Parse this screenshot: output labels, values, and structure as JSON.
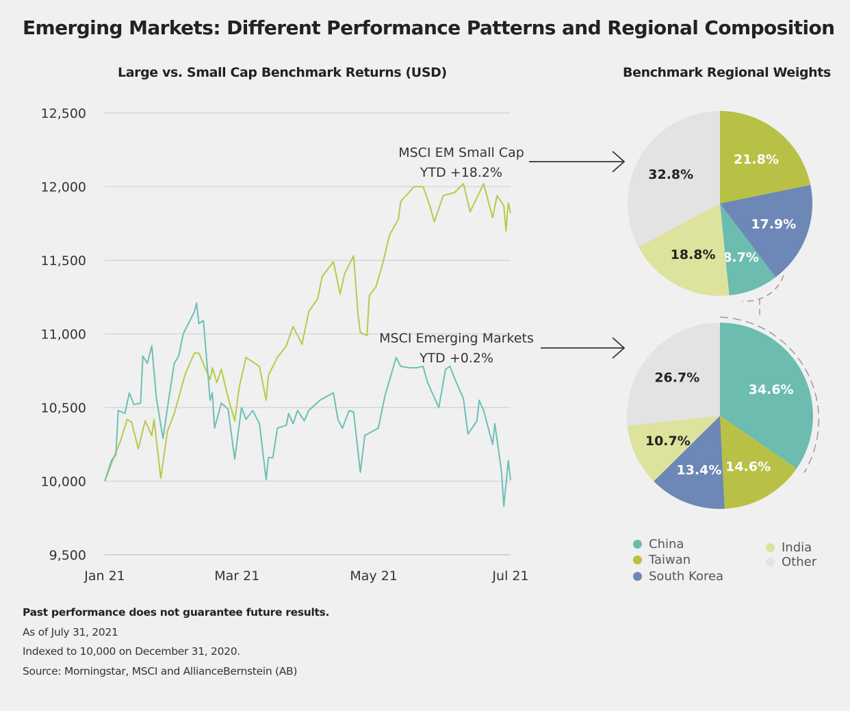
{
  "title": "Emerging Markets: Different Performance Patterns and Regional Composition",
  "footer": {
    "disclaimer": "Past performance does not guarantee future results.",
    "as_of": "As of July 31, 2021",
    "indexed": "Indexed to 10,000 on December 31, 2020.",
    "source": "Source: Morningstar, MSCI and AllianceBernstein (AB)"
  },
  "colors": {
    "china": "#6cbcb0",
    "taiwan": "#b8c145",
    "south_korea": "#6d87b6",
    "india": "#dde29d",
    "other": "#e3e3e3"
  },
  "chart_data": [
    {
      "type": "line",
      "title": "Large vs. Small Cap Benchmark Returns (USD)",
      "xlabel": "",
      "ylabel": "",
      "ylim": [
        9500,
        12500
      ],
      "yticks": [
        9500,
        10000,
        10500,
        11000,
        11500,
        12000,
        12500
      ],
      "ytick_labels": [
        "9,500",
        "10,000",
        "10,500",
        "11,000",
        "11,500",
        "12,000",
        "12,500"
      ],
      "xlim": [
        "2021-01-01",
        "2021-07-01"
      ],
      "xticks": [
        "2021-01-01",
        "2021-03-01",
        "2021-05-01",
        "2021-07-01"
      ],
      "xtick_labels": [
        "Jan 21",
        "Mar 21",
        "May 21",
        "Jul 21"
      ],
      "grid": "horizontal",
      "series": [
        {
          "name": "MSCI EM Small Cap",
          "annotation": [
            "MSCI EM Small Cap",
            "YTD +18.2%"
          ],
          "color": "#b9c84a",
          "x": [
            "2021-01-01",
            "2021-01-05",
            "2021-01-08",
            "2021-01-11",
            "2021-01-13",
            "2021-01-16",
            "2021-01-19",
            "2021-01-22",
            "2021-01-23",
            "2021-01-26",
            "2021-01-29",
            "2021-02-01",
            "2021-02-06",
            "2021-02-10",
            "2021-02-12",
            "2021-02-17",
            "2021-02-18",
            "2021-02-20",
            "2021-02-22",
            "2021-02-25",
            "2021-02-28",
            "2021-03-02",
            "2021-03-05",
            "2021-03-11",
            "2021-03-14",
            "2021-03-15",
            "2021-03-19",
            "2021-03-23",
            "2021-03-26",
            "2021-03-30",
            "2021-04-02",
            "2021-04-06",
            "2021-04-08",
            "2021-04-13",
            "2021-04-16",
            "2021-04-18",
            "2021-04-22",
            "2021-04-24",
            "2021-04-25",
            "2021-04-28",
            "2021-04-29",
            "2021-05-02",
            "2021-05-05",
            "2021-05-08",
            "2021-05-12",
            "2021-05-13",
            "2021-05-19",
            "2021-05-23",
            "2021-05-26",
            "2021-05-28",
            "2021-06-01",
            "2021-06-06",
            "2021-06-10",
            "2021-06-13",
            "2021-06-19",
            "2021-06-23",
            "2021-06-25",
            "2021-06-28",
            "2021-06-29",
            "2021-06-30",
            "2021-07-01"
          ],
          "y": [
            10000,
            10160,
            10270,
            10420,
            10400,
            10220,
            10410,
            10310,
            10420,
            10020,
            10340,
            10460,
            10730,
            10870,
            10870,
            10690,
            10770,
            10670,
            10760,
            10570,
            10410,
            10640,
            10840,
            10780,
            10550,
            10720,
            10840,
            10920,
            11050,
            10930,
            11150,
            11240,
            11390,
            11490,
            11270,
            11410,
            11530,
            11130,
            11010,
            10990,
            11260,
            11320,
            11480,
            11670,
            11780,
            11900,
            12000,
            12000,
            11870,
            11760,
            11940,
            11960,
            12020,
            11830,
            12020,
            11790,
            11940,
            11870,
            11700,
            11890,
            11820
          ]
        },
        {
          "name": "MSCI Emerging Markets",
          "annotation": [
            "MSCI Emerging Markets",
            "YTD +0.2%"
          ],
          "color": "#6bbfb4",
          "x": [
            "2021-01-01",
            "2021-01-04",
            "2021-01-06",
            "2021-01-07",
            "2021-01-10",
            "2021-01-12",
            "2021-01-14",
            "2021-01-17",
            "2021-01-18",
            "2021-01-20",
            "2021-01-22",
            "2021-01-24",
            "2021-01-27",
            "2021-01-29",
            "2021-02-01",
            "2021-02-03",
            "2021-02-05",
            "2021-02-10",
            "2021-02-11",
            "2021-02-12",
            "2021-02-14",
            "2021-02-17",
            "2021-02-18",
            "2021-02-19",
            "2021-02-22",
            "2021-02-25",
            "2021-02-28",
            "2021-03-03",
            "2021-03-05",
            "2021-03-08",
            "2021-03-11",
            "2021-03-14",
            "2021-03-15",
            "2021-03-17",
            "2021-03-19",
            "2021-03-23",
            "2021-03-24",
            "2021-03-26",
            "2021-03-28",
            "2021-03-31",
            "2021-04-02",
            "2021-04-07",
            "2021-04-13",
            "2021-04-15",
            "2021-04-17",
            "2021-04-20",
            "2021-04-22",
            "2021-04-25",
            "2021-04-27",
            "2021-05-03",
            "2021-05-06",
            "2021-05-11",
            "2021-05-13",
            "2021-05-17",
            "2021-05-20",
            "2021-05-23",
            "2021-05-25",
            "2021-05-30",
            "2021-06-02",
            "2021-06-04",
            "2021-06-06",
            "2021-06-10",
            "2021-06-12",
            "2021-06-16",
            "2021-06-17",
            "2021-06-19",
            "2021-06-23",
            "2021-06-24",
            "2021-06-27",
            "2021-06-28",
            "2021-06-30",
            "2021-07-01"
          ],
          "y": [
            10000,
            10140,
            10180,
            10480,
            10460,
            10600,
            10520,
            10530,
            10850,
            10800,
            10920,
            10570,
            10290,
            10500,
            10800,
            10850,
            11000,
            11150,
            11210,
            11070,
            11090,
            10550,
            10600,
            10360,
            10530,
            10490,
            10150,
            10500,
            10420,
            10480,
            10390,
            10010,
            10160,
            10160,
            10360,
            10380,
            10460,
            10390,
            10480,
            10410,
            10480,
            10550,
            10600,
            10420,
            10360,
            10480,
            10470,
            10060,
            10310,
            10360,
            10580,
            10840,
            10780,
            10770,
            10770,
            10780,
            10670,
            10500,
            10760,
            10780,
            10700,
            10560,
            10320,
            10410,
            10550,
            10480,
            10250,
            10390,
            10060,
            9830,
            10140,
            10010
          ]
        }
      ]
    },
    {
      "type": "pie",
      "title": "Benchmark Regional Weights",
      "legend": "bottom",
      "legend_entries": [
        "China",
        "Taiwan",
        "South Korea",
        "India",
        "Other"
      ],
      "pies": [
        {
          "associated_series": "MSCI EM Small Cap",
          "slices": [
            {
              "label": "Taiwan",
              "value": 21.8,
              "text": "21.8%"
            },
            {
              "label": "South Korea",
              "value": 17.9,
              "text": "17.9%"
            },
            {
              "label": "China",
              "value": 8.7,
              "text": "8.7%"
            },
            {
              "label": "India",
              "value": 18.8,
              "text": "18.8%"
            },
            {
              "label": "Other",
              "value": 32.8,
              "text": "32.8%"
            }
          ]
        },
        {
          "associated_series": "MSCI Emerging Markets",
          "slices": [
            {
              "label": "China",
              "value": 34.6,
              "text": "34.6%"
            },
            {
              "label": "Taiwan",
              "value": 14.6,
              "text": "14.6%"
            },
            {
              "label": "South Korea",
              "value": 13.4,
              "text": "13.4%"
            },
            {
              "label": "India",
              "value": 10.7,
              "text": "10.7%"
            },
            {
              "label": "Other",
              "value": 26.7,
              "text": "26.7%"
            }
          ]
        }
      ]
    }
  ]
}
